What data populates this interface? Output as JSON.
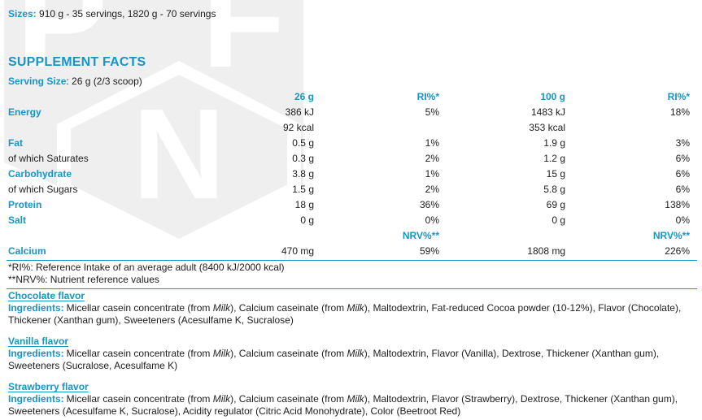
{
  "colors": {
    "accent": "#1795c8",
    "text": "#1d1d1f",
    "watermark_gray": "#efefef",
    "watermark_letters": "#ffffff"
  },
  "watermark": {
    "letter_p": "P",
    "letter_f": "F",
    "letter_n": "N"
  },
  "header": {
    "sizes_label": "Sizes:",
    "sizes_value": " 910 g - 35 servings, 1820 g - 70 servings",
    "title": "SUPPLEMENT FACTS",
    "serving_label": "Serving Size",
    "serving_value": ": 26 g (2/3 scoop)"
  },
  "facts": {
    "columns": [
      "26 g",
      "RI%*",
      "100 g",
      "RI%*"
    ],
    "rows": [
      {
        "label": "Energy",
        "values": [
          "386 kJ",
          "5%",
          "1483 kJ",
          "18%"
        ]
      },
      {
        "label": "",
        "values": [
          "92 kcal",
          "",
          "353 kcal",
          ""
        ]
      },
      {
        "label": "Fat",
        "values": [
          "0.5 g",
          "1%",
          "1.9 g",
          "3%"
        ]
      },
      {
        "label": "of which Saturates",
        "values": [
          "0.3 g",
          "2%",
          "1.2 g",
          "6%"
        ]
      },
      {
        "label": "Carbohydrate",
        "values": [
          "3.8 g",
          "1%",
          "15 g",
          "6%"
        ]
      },
      {
        "label": "of which Sugars",
        "values": [
          "1.5 g",
          "2%",
          "5.8 g",
          "6%"
        ]
      },
      {
        "label": "Protein",
        "values": [
          "18 g",
          "36%",
          "69 g",
          "138%"
        ]
      },
      {
        "label": "Salt",
        "values": [
          "0 g",
          "0%",
          "0 g",
          "0%"
        ]
      },
      {
        "label": "",
        "values": [
          "",
          "NRV%**",
          "",
          "NRV%**"
        ]
      },
      {
        "label": "Calcium",
        "values": [
          "470 mg",
          "59%",
          "1808 mg",
          "226%"
        ]
      }
    ],
    "footnotes": [
      "*RI%: Reference Intake of an average adult (8400 kJ/2000 kcal)",
      "**NRV%: Nutrient reference values"
    ]
  },
  "flavors": [
    {
      "heading": "Chocolate flavor",
      "ingredients_label": "Ingredients:",
      "segments": [
        {
          "t": "Micellar casein concentrate (from "
        },
        {
          "t": "Milk",
          "i": true
        },
        {
          "t": "), Calcium caseinate (from "
        },
        {
          "t": "Milk",
          "i": true
        },
        {
          "t": "), Maltodextrin, Fat-reduced Cocoa powder (10-12%), Flavor (Chocolate), Thickener (Xanthan gum), Sweeteners (Acesulfame K, Sucralose)"
        }
      ]
    },
    {
      "heading": "Vanilla flavor",
      "ingredients_label": "Ingredients:",
      "segments": [
        {
          "t": "Micellar casein concentrate (from "
        },
        {
          "t": "Milk",
          "i": true
        },
        {
          "t": "), Calcium caseinate (from "
        },
        {
          "t": "Milk",
          "i": true
        },
        {
          "t": "), Maltodextrin, Flavor (Vanilla), Dextrose, Thickener (Xanthan gum), Sweeteners (Sucralose, Acesulfame K)"
        }
      ]
    },
    {
      "heading": "Strawberry flavor",
      "ingredients_label": "Ingredients:",
      "segments": [
        {
          "t": "Micellar casein concentrate (from "
        },
        {
          "t": "Milk",
          "i": true
        },
        {
          "t": "), Calcium caseinate (from "
        },
        {
          "t": "Milk",
          "i": true
        },
        {
          "t": "), Maltodextrin, Flavor (Strawberry), Dextrose, Thickener (Xanthan gum), Sweeteners (Acesulfame K, Sucralose), Acidity regulator (Citric Acid Monohydrate), Color (Beetroot Red)"
        }
      ]
    }
  ]
}
